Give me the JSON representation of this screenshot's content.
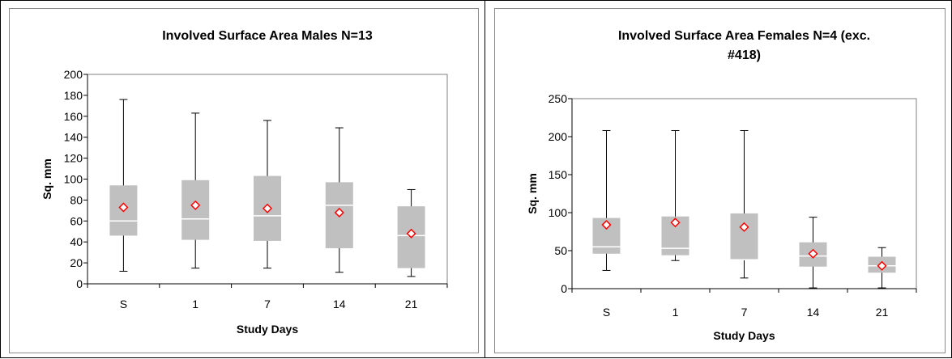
{
  "chart_data": [
    {
      "type": "box",
      "title": "Involved Surface Area Males N=13",
      "xlabel": "Study Days",
      "ylabel": "Sq. mm",
      "ylim": [
        0,
        200
      ],
      "yticks": [
        "0",
        "20",
        "40",
        "60",
        "80",
        "100",
        "120",
        "140",
        "160",
        "180",
        "200"
      ],
      "categories": [
        "S",
        "1",
        "7",
        "14",
        "21"
      ],
      "series": [
        {
          "min": 12,
          "q1": 46,
          "median": 60,
          "q3": 94,
          "max": 176,
          "mean": 73
        },
        {
          "min": 15,
          "q1": 42,
          "median": 62,
          "q3": 99,
          "max": 163,
          "mean": 75
        },
        {
          "min": 15,
          "q1": 41,
          "median": 65,
          "q3": 103,
          "max": 156,
          "mean": 72
        },
        {
          "min": 11,
          "q1": 34,
          "median": 75,
          "q3": 97,
          "max": 149,
          "mean": 68
        },
        {
          "min": 7,
          "q1": 15,
          "median": 46,
          "q3": 74,
          "max": 90,
          "mean": 48
        }
      ],
      "colors": {
        "box": "#c0c0c0",
        "median": "#ffffff",
        "mean_marker": "#ff0000"
      },
      "grid": false,
      "legend": "none"
    },
    {
      "type": "box",
      "title": [
        "Involved Surface Area Females N=4 (exc.",
        "#418)"
      ],
      "xlabel": "Study Days",
      "ylabel": "Sq. mm",
      "ylim": [
        0,
        250
      ],
      "yticks": [
        "0",
        "50",
        "100",
        "150",
        "200",
        "250"
      ],
      "categories": [
        "S",
        "1",
        "7",
        "14",
        "21"
      ],
      "series": [
        {
          "min": 24,
          "q1": 46,
          "median": 55,
          "q3": 93,
          "max": 208,
          "mean": 84
        },
        {
          "min": 37,
          "q1": 44,
          "median": 53,
          "q3": 95,
          "max": 208,
          "mean": 87
        },
        {
          "min": 14,
          "q1": 38,
          "median": 38,
          "q3": 99,
          "max": 208,
          "mean": 81
        },
        {
          "min": 1,
          "q1": 29,
          "median": 43,
          "q3": 61,
          "max": 94,
          "mean": 46
        },
        {
          "min": 1,
          "q1": 21,
          "median": 30,
          "q3": 42,
          "max": 54,
          "mean": 30
        }
      ],
      "colors": {
        "box": "#c0c0c0",
        "median": "#ffffff",
        "mean_marker": "#ff0000"
      },
      "grid": false,
      "legend": "none"
    }
  ]
}
